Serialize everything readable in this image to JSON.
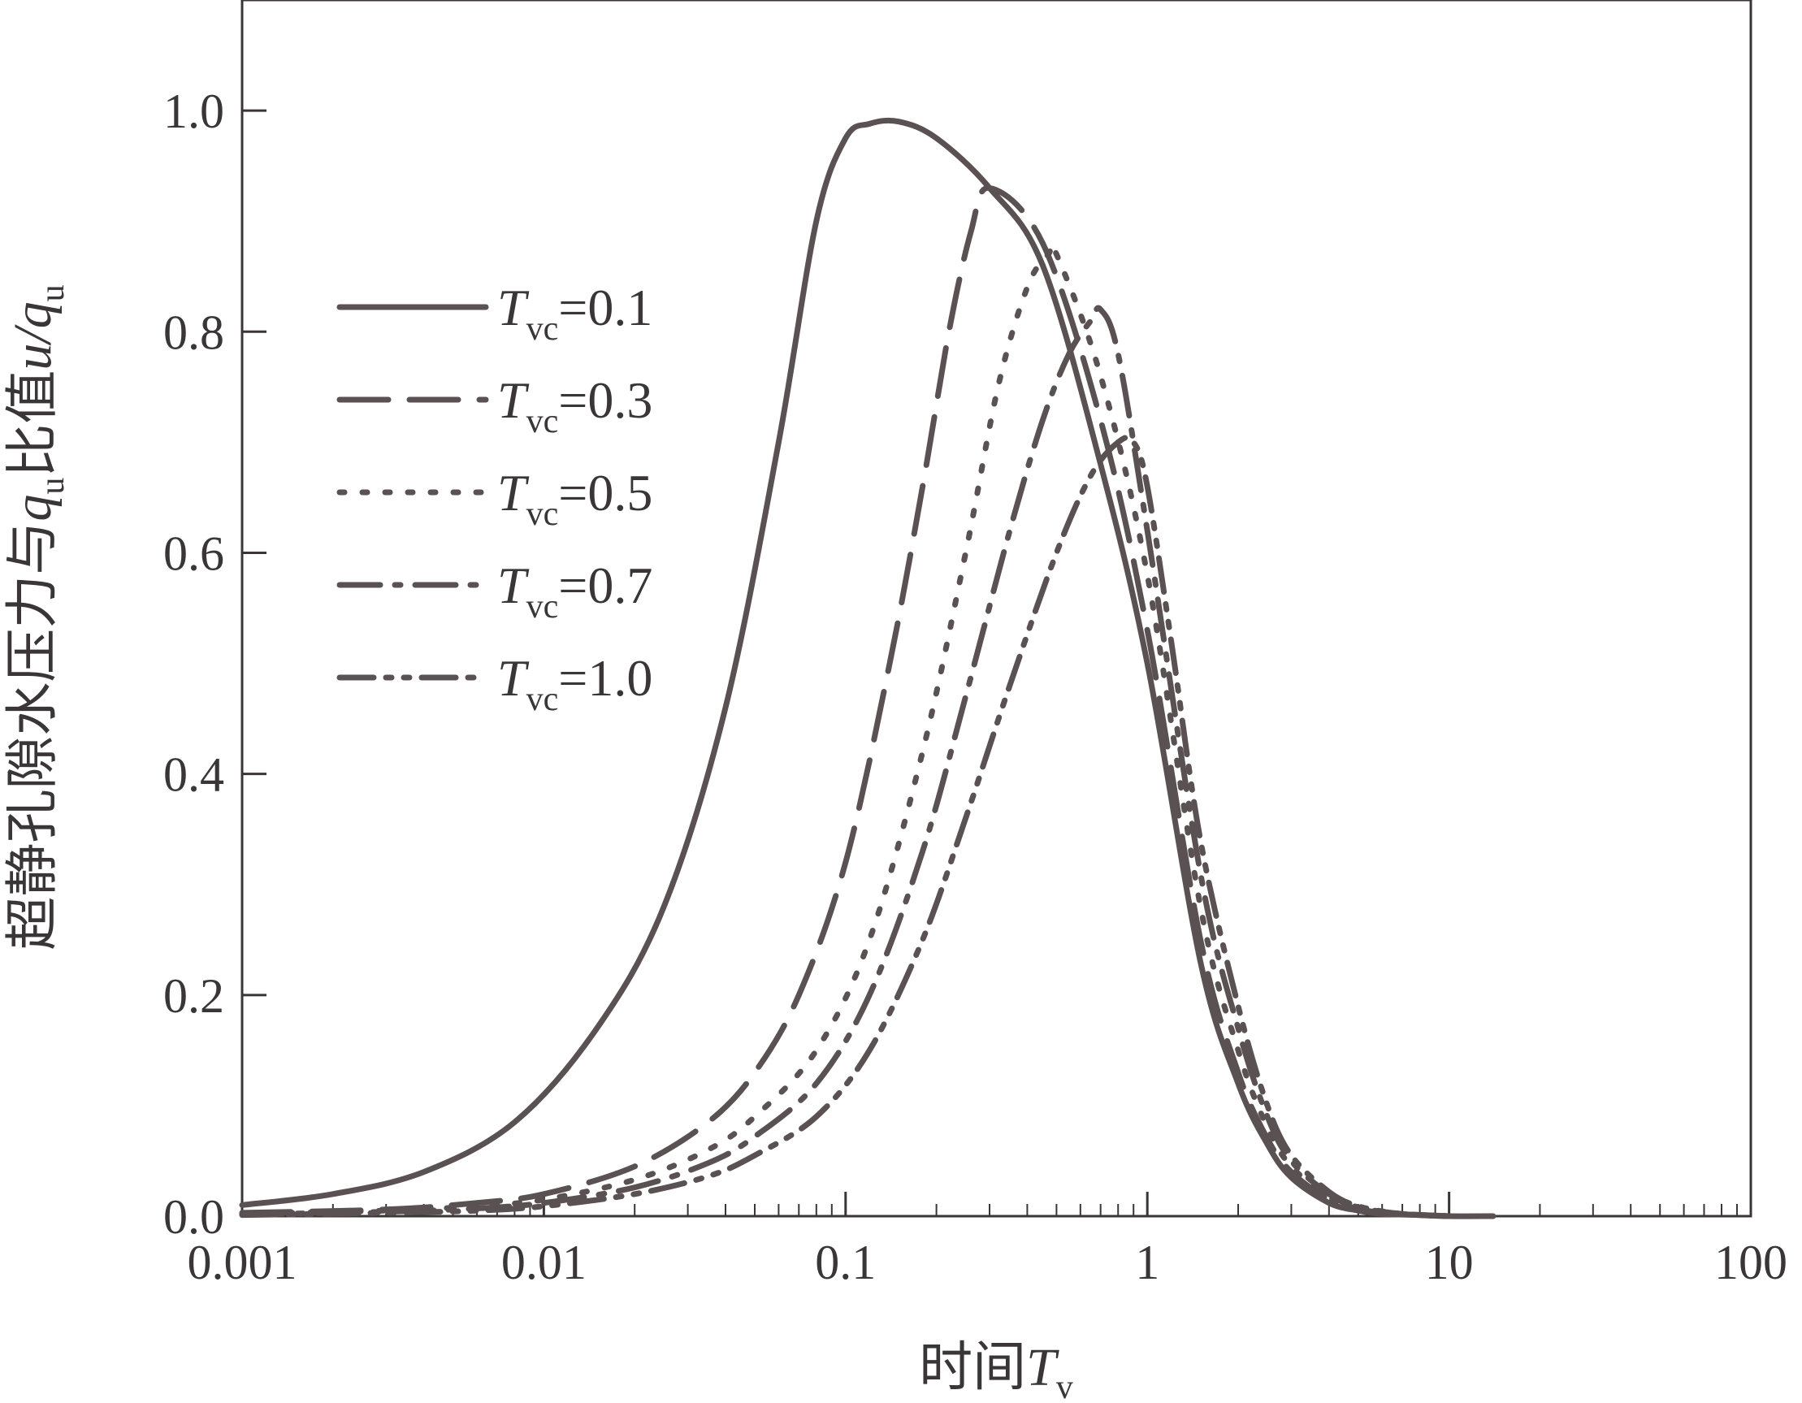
{
  "chart_data": {
    "type": "line",
    "xscale": "log",
    "xlim": [
      0.001,
      100
    ],
    "ylim": [
      0.0,
      1.1
    ],
    "xticks": [
      "0.001",
      "0.01",
      "0.1",
      "1",
      "10",
      "100"
    ],
    "yticks": [
      "0.0",
      "0.2",
      "0.4",
      "0.6",
      "0.8",
      "1.0"
    ],
    "xlabel": {
      "prefix": "时间",
      "main": "T",
      "sub": "v"
    },
    "ylabel": {
      "prefix": "超静孔隙水压力与",
      "q1": "q",
      "q1sub": "u",
      "mid": "比值",
      "ratio": "u/q",
      "ratiosub": "u"
    },
    "grid": false,
    "legend_position": "upper-left",
    "line_color": "#5a5152",
    "series": [
      {
        "name": "Tvc=0.1",
        "legend": {
          "main": "T",
          "sub": "vc",
          "value": "=0.1"
        },
        "style": "solid",
        "x": [
          0.001,
          0.002,
          0.004,
          0.008,
          0.015,
          0.025,
          0.04,
          0.06,
          0.08,
          0.1,
          0.12,
          0.15,
          0.2,
          0.3,
          0.45,
          0.7,
          1.0,
          1.5,
          2.0,
          2.5,
          3.0,
          4.0,
          5.0,
          6.0,
          8.0,
          10.0,
          14.0
        ],
        "y": [
          0.01,
          0.02,
          0.04,
          0.085,
          0.17,
          0.28,
          0.46,
          0.7,
          0.9,
          0.975,
          0.988,
          0.99,
          0.975,
          0.93,
          0.86,
          0.68,
          0.5,
          0.23,
          0.12,
          0.065,
          0.035,
          0.012,
          0.005,
          0.002,
          0.001,
          0.0,
          0.0
        ]
      },
      {
        "name": "Tvc=0.3",
        "legend": {
          "main": "T",
          "sub": "vc",
          "value": "=0.3"
        },
        "style": "dashed",
        "x": [
          0.001,
          0.003,
          0.006,
          0.01,
          0.02,
          0.035,
          0.05,
          0.07,
          0.1,
          0.14,
          0.18,
          0.22,
          0.26,
          0.3,
          0.45,
          0.7,
          1.0,
          1.5,
          2.0,
          2.5,
          3.0,
          4.0,
          5.0,
          7.0,
          10.0
        ],
        "y": [
          0.003,
          0.006,
          0.012,
          0.02,
          0.045,
          0.085,
          0.13,
          0.2,
          0.32,
          0.5,
          0.66,
          0.8,
          0.89,
          0.93,
          0.88,
          0.72,
          0.53,
          0.25,
          0.13,
          0.07,
          0.04,
          0.015,
          0.006,
          0.002,
          0.0
        ]
      },
      {
        "name": "Tvc=0.5",
        "legend": {
          "main": "T",
          "sub": "vc",
          "value": "=0.5"
        },
        "style": "dotted",
        "x": [
          0.001,
          0.003,
          0.006,
          0.01,
          0.02,
          0.035,
          0.05,
          0.08,
          0.12,
          0.18,
          0.25,
          0.32,
          0.4,
          0.47,
          0.5,
          0.7,
          1.0,
          1.5,
          2.0,
          2.5,
          3.0,
          4.0,
          5.0,
          7.0,
          10.0
        ],
        "y": [
          0.002,
          0.005,
          0.009,
          0.015,
          0.033,
          0.06,
          0.09,
          0.15,
          0.25,
          0.42,
          0.6,
          0.75,
          0.84,
          0.87,
          0.87,
          0.76,
          0.58,
          0.28,
          0.15,
          0.08,
          0.045,
          0.017,
          0.007,
          0.002,
          0.0
        ]
      },
      {
        "name": "Tvc=0.7",
        "legend": {
          "main": "T",
          "sub": "vc",
          "value": "=0.7"
        },
        "style": "dashdot",
        "x": [
          0.001,
          0.003,
          0.006,
          0.01,
          0.02,
          0.035,
          0.05,
          0.08,
          0.12,
          0.18,
          0.25,
          0.35,
          0.45,
          0.55,
          0.65,
          0.7,
          0.8,
          1.0,
          1.5,
          2.0,
          2.5,
          3.0,
          4.0,
          5.0,
          7.0,
          10.0
        ],
        "y": [
          0.0015,
          0.004,
          0.007,
          0.012,
          0.026,
          0.048,
          0.072,
          0.12,
          0.2,
          0.33,
          0.47,
          0.62,
          0.72,
          0.78,
          0.81,
          0.82,
          0.78,
          0.62,
          0.31,
          0.17,
          0.09,
          0.05,
          0.02,
          0.008,
          0.002,
          0.0
        ]
      },
      {
        "name": "Tvc=1.0",
        "legend": {
          "main": "T",
          "sub": "vc",
          "value": "=1.0"
        },
        "style": "dashdotdot",
        "x": [
          0.001,
          0.003,
          0.006,
          0.01,
          0.02,
          0.035,
          0.05,
          0.08,
          0.12,
          0.18,
          0.25,
          0.35,
          0.5,
          0.65,
          0.8,
          0.9,
          1.0,
          1.2,
          1.5,
          2.0,
          2.5,
          3.0,
          4.0,
          5.0,
          7.0,
          10.0
        ],
        "y": [
          0.001,
          0.003,
          0.005,
          0.009,
          0.02,
          0.036,
          0.055,
          0.09,
          0.15,
          0.25,
          0.36,
          0.48,
          0.6,
          0.67,
          0.7,
          0.7,
          0.66,
          0.52,
          0.34,
          0.19,
          0.1,
          0.055,
          0.022,
          0.009,
          0.002,
          0.0
        ]
      }
    ]
  }
}
